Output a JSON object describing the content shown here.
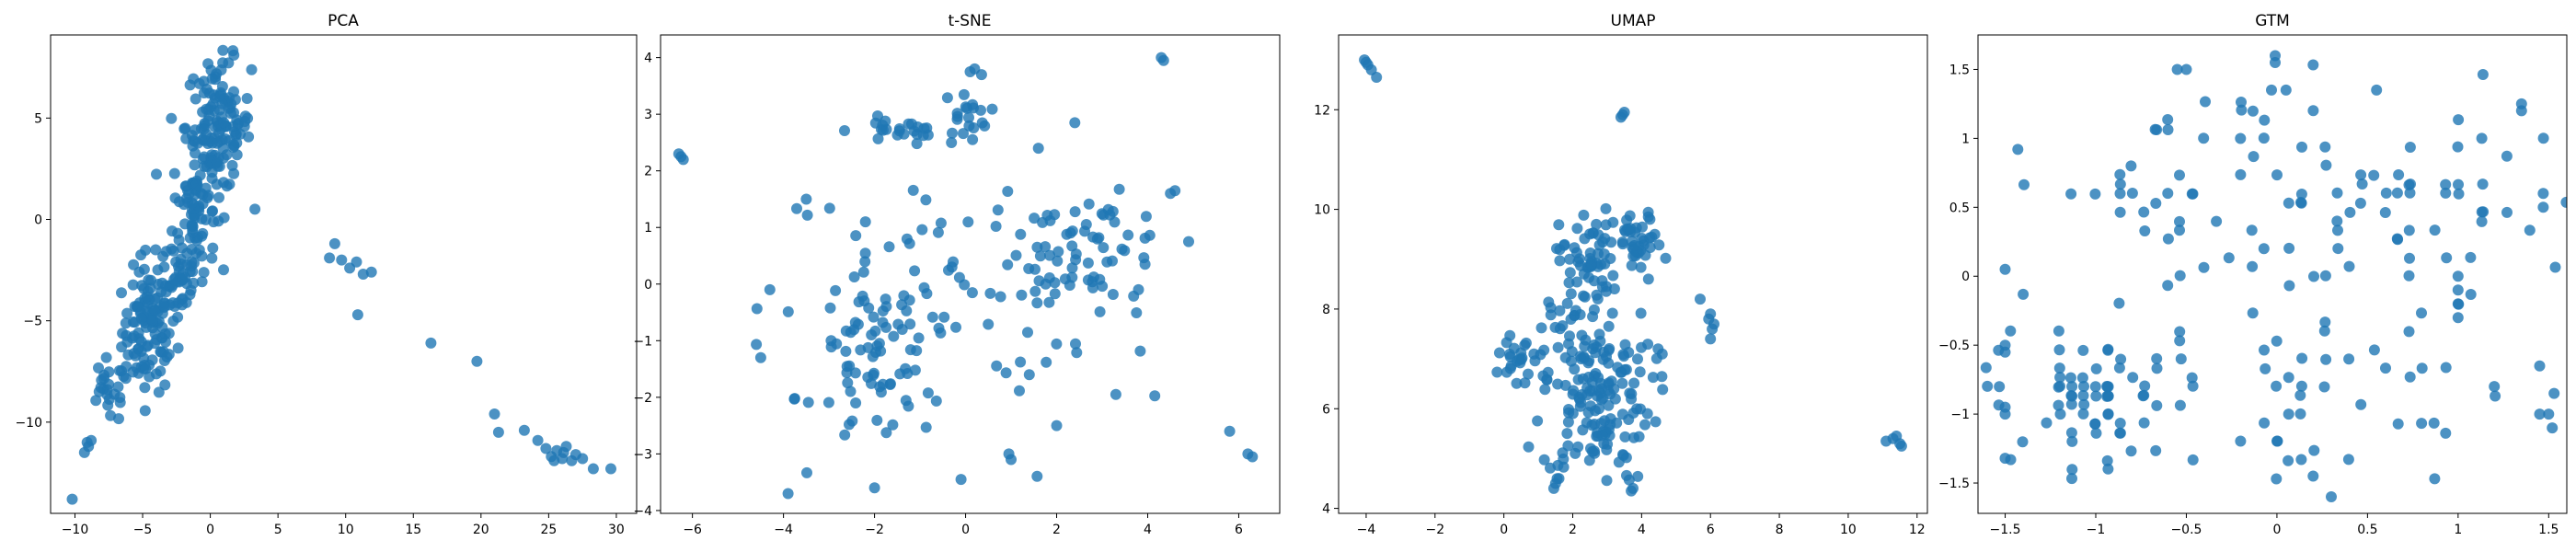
{
  "figure": {
    "background": "#ffffff",
    "point_color": "#1f77b4",
    "point_alpha": 0.8
  },
  "chart_data": [
    {
      "type": "scatter",
      "title": "PCA",
      "xlim": [
        -11.8,
        31.5
      ],
      "ylim": [
        -14.5,
        9.1
      ],
      "xticks": [
        -10,
        -5,
        0,
        5,
        10,
        15,
        20,
        25,
        30
      ],
      "yticks": [
        -10,
        -5,
        0,
        5
      ],
      "grid": false,
      "clusters": [
        {
          "cx": -4.5,
          "cy": -5.5,
          "sx": 1.0,
          "sy": 1.5,
          "n": 110
        },
        {
          "cx": -2.5,
          "cy": -2.8,
          "sx": 1.0,
          "sy": 1.2,
          "n": 50
        },
        {
          "cx": -1.2,
          "cy": 0.5,
          "sx": 0.8,
          "sy": 1.5,
          "n": 70
        },
        {
          "cx": 0.6,
          "cy": 4.6,
          "sx": 1.2,
          "sy": 1.6,
          "n": 140
        },
        {
          "cx": -7.5,
          "cy": -8.5,
          "sx": 0.8,
          "sy": 0.8,
          "n": 25
        }
      ],
      "points": [
        [
          -10.2,
          -13.8
        ],
        [
          -9.3,
          -11.5
        ],
        [
          -9.0,
          -11.2
        ],
        [
          -8.8,
          -10.9
        ],
        [
          -9.1,
          -11.0
        ],
        [
          9.2,
          -1.2
        ],
        [
          8.8,
          -1.9
        ],
        [
          9.7,
          -2.0
        ],
        [
          10.3,
          -2.4
        ],
        [
          10.8,
          -2.1
        ],
        [
          11.3,
          -2.7
        ],
        [
          11.9,
          -2.6
        ],
        [
          10.9,
          -4.7
        ],
        [
          16.3,
          -6.1
        ],
        [
          19.7,
          -7.0
        ],
        [
          21.0,
          -9.6
        ],
        [
          21.3,
          -10.5
        ],
        [
          23.2,
          -10.4
        ],
        [
          24.2,
          -10.9
        ],
        [
          24.8,
          -11.3
        ],
        [
          25.2,
          -11.7
        ],
        [
          25.6,
          -11.4
        ],
        [
          26.0,
          -11.8
        ],
        [
          26.3,
          -11.2
        ],
        [
          26.7,
          -11.9
        ],
        [
          27.0,
          -11.6
        ],
        [
          26.1,
          -11.5
        ],
        [
          25.4,
          -11.9
        ],
        [
          27.5,
          -11.8
        ],
        [
          28.3,
          -12.3
        ],
        [
          29.6,
          -12.3
        ]
      ]
    },
    {
      "type": "scatter",
      "title": "t-SNE",
      "xlim": [
        -6.7,
        6.9
      ],
      "ylim": [
        -4.05,
        4.4
      ],
      "xticks": [
        -6,
        -4,
        -2,
        0,
        2,
        4,
        6
      ],
      "yticks": [
        -4,
        -3,
        -2,
        -1,
        0,
        1,
        2,
        3,
        4
      ],
      "grid": false,
      "clusters": [
        {
          "cx": -1.9,
          "cy": -1.3,
          "sx": 0.7,
          "sy": 0.8,
          "n": 80
        },
        {
          "cx": 2.9,
          "cy": 0.6,
          "sx": 0.8,
          "sy": 0.45,
          "n": 50
        },
        {
          "cx": -1.5,
          "cy": 2.7,
          "sx": 0.5,
          "sy": 0.12,
          "n": 25
        },
        {
          "cx": 0.0,
          "cy": 3.0,
          "sx": 0.25,
          "sy": 0.2,
          "n": 18
        },
        {
          "cx": 1.7,
          "cy": 0.4,
          "sx": 0.5,
          "sy": 0.5,
          "n": 20
        },
        {
          "cx": 0.0,
          "cy": -0.5,
          "sx": 2.2,
          "sy": 1.6,
          "n": 50
        }
      ],
      "points": [
        [
          -6.3,
          2.3
        ],
        [
          -6.2,
          2.2
        ],
        [
          -6.25,
          2.25
        ],
        [
          4.3,
          4.0
        ],
        [
          4.35,
          3.95
        ],
        [
          0.2,
          3.8
        ],
        [
          0.35,
          3.7
        ],
        [
          0.1,
          3.75
        ],
        [
          -3.9,
          -3.7
        ],
        [
          -2.0,
          -3.6
        ],
        [
          -0.1,
          -3.45
        ],
        [
          1.0,
          -3.1
        ],
        [
          0.95,
          -3.0
        ],
        [
          5.8,
          -2.6
        ],
        [
          6.2,
          -3.0
        ],
        [
          6.3,
          -3.05
        ],
        [
          4.5,
          1.6
        ],
        [
          4.6,
          1.65
        ],
        [
          4.9,
          0.75
        ],
        [
          -4.5,
          -1.3
        ],
        [
          -4.3,
          -0.1
        ],
        [
          -3.5,
          1.5
        ],
        [
          -2.2,
          1.1
        ],
        [
          1.6,
          2.4
        ],
        [
          2.4,
          2.85
        ],
        [
          2.0,
          -2.5
        ],
        [
          3.3,
          -1.95
        ],
        [
          1.4,
          -1.6
        ],
        [
          -0.3,
          0.3
        ]
      ]
    },
    {
      "type": "scatter",
      "title": "UMAP",
      "xlim": [
        -4.8,
        12.3
      ],
      "ylim": [
        3.9,
        13.5
      ],
      "xticks": [
        -4,
        -2,
        0,
        2,
        4,
        6,
        8,
        10,
        12
      ],
      "yticks": [
        4,
        6,
        8,
        10,
        12
      ],
      "grid": false,
      "clusters": [
        {
          "cx": 2.7,
          "cy": 6.3,
          "sx": 0.8,
          "sy": 0.9,
          "n": 160
        },
        {
          "cx": 2.4,
          "cy": 9.0,
          "sx": 0.4,
          "sy": 0.5,
          "n": 55
        },
        {
          "cx": 3.9,
          "cy": 9.3,
          "sx": 0.35,
          "sy": 0.3,
          "n": 40
        },
        {
          "cx": 0.6,
          "cy": 7.0,
          "sx": 0.5,
          "sy": 0.3,
          "n": 25
        },
        {
          "cx": 1.8,
          "cy": 7.6,
          "sx": 0.4,
          "sy": 0.5,
          "n": 20
        }
      ],
      "points": [
        [
          -4.05,
          13.0
        ],
        [
          -3.95,
          12.9
        ],
        [
          -3.85,
          12.8
        ],
        [
          -4.0,
          12.95
        ],
        [
          -3.7,
          12.65
        ],
        [
          3.45,
          11.9
        ],
        [
          3.5,
          11.95
        ],
        [
          3.4,
          11.85
        ],
        [
          11.1,
          5.35
        ],
        [
          11.3,
          5.4
        ],
        [
          11.5,
          5.3
        ],
        [
          11.4,
          5.45
        ],
        [
          11.55,
          5.25
        ],
        [
          6.0,
          7.9
        ],
        [
          6.1,
          7.7
        ],
        [
          6.0,
          7.4
        ],
        [
          6.05,
          7.6
        ],
        [
          5.7,
          8.2
        ],
        [
          5.95,
          7.8
        ],
        [
          1.5,
          4.5
        ],
        [
          1.45,
          4.4
        ],
        [
          3.7,
          4.35
        ],
        [
          3.75,
          4.4
        ],
        [
          1.6,
          4.6
        ],
        [
          4.6,
          7.1
        ],
        [
          4.2,
          8.6
        ]
      ]
    },
    {
      "type": "scatter",
      "title": "GTM",
      "xlim": [
        -1.65,
        1.6
      ],
      "ylim": [
        -1.72,
        1.75
      ],
      "xticks": [
        -1.5,
        -1.0,
        -0.5,
        0.0,
        0.5,
        1.0,
        1.5
      ],
      "yticks": [
        -1.5,
        -1.0,
        -0.5,
        0.0,
        0.5,
        1.0,
        1.5
      ],
      "grid": false,
      "lattice": {
        "step": 0.0667,
        "jitter": 0.01
      },
      "clusters": [
        {
          "cx": -1.0,
          "cy": -0.9,
          "sx": 0.3,
          "sy": 0.22,
          "n": 70
        },
        {
          "cx": 0.5,
          "cy": 0.6,
          "sx": 0.5,
          "sy": 0.3,
          "n": 60
        },
        {
          "cx": -0.7,
          "cy": 0.75,
          "sx": 0.3,
          "sy": 0.4,
          "n": 25
        },
        {
          "cx": 0.3,
          "cy": -1.0,
          "sx": 0.4,
          "sy": 0.3,
          "n": 30
        },
        {
          "cx": 0.0,
          "cy": 0.0,
          "sx": 1.0,
          "sy": 0.9,
          "n": 35
        }
      ],
      "points": [
        [
          -1.5,
          0.05
        ],
        [
          -1.43,
          0.92
        ],
        [
          -1.5,
          -0.5
        ],
        [
          -1.5,
          -0.55
        ],
        [
          -1.5,
          -0.95
        ],
        [
          -1.5,
          -1.0
        ],
        [
          -1.5,
          -1.32
        ],
        [
          -0.01,
          1.6
        ],
        [
          -0.01,
          1.55
        ],
        [
          0.05,
          1.35
        ],
        [
          -0.03,
          1.35
        ],
        [
          0.55,
          1.35
        ],
        [
          -0.55,
          1.5
        ],
        [
          -0.5,
          1.5
        ],
        [
          1.35,
          1.25
        ],
        [
          1.35,
          1.2
        ],
        [
          1.5,
          -1.0
        ],
        [
          1.45,
          -1.0
        ],
        [
          1.53,
          -0.85
        ],
        [
          1.52,
          -1.1
        ],
        [
          1.47,
          0.6
        ],
        [
          1.47,
          0.5
        ],
        [
          1.45,
          -0.65
        ],
        [
          1.2,
          -0.8
        ],
        [
          1.0,
          -0.2
        ],
        [
          1.0,
          -0.1
        ],
        [
          1.0,
          0.0
        ],
        [
          1.0,
          -0.3
        ],
        [
          0.2,
          -1.45
        ],
        [
          0.3,
          -1.6
        ]
      ]
    }
  ]
}
